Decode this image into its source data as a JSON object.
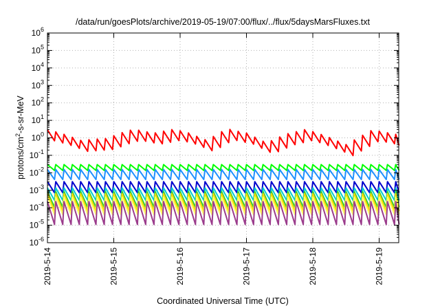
{
  "chart_data": {
    "type": "line",
    "title": "/data/run/goesPlots/archive/2019-05-19/07:00/flux/../flux/5daysMarsFluxes.txt",
    "xlabel": "Coordinated Universal Time (UTC)",
    "ylabel": "protons/cm²-s-sr-MeV",
    "ylabel_parts": {
      "pre": "protons/cm",
      "sup": "2",
      "post": "-s-sr-MeV"
    },
    "yscale": "log",
    "ylim_exp": [
      -6,
      6
    ],
    "y_ticks": [
      {
        "base": "10",
        "exp": "-6"
      },
      {
        "base": "10",
        "exp": "-5"
      },
      {
        "base": "10",
        "exp": "-4"
      },
      {
        "base": "10",
        "exp": "-3"
      },
      {
        "base": "10",
        "exp": "-2"
      },
      {
        "base": "10",
        "exp": "-1"
      },
      {
        "base": "10",
        "exp": "0"
      },
      {
        "base": "10",
        "exp": "1"
      },
      {
        "base": "10",
        "exp": "2"
      },
      {
        "base": "10",
        "exp": "3"
      },
      {
        "base": "10",
        "exp": "4"
      },
      {
        "base": "10",
        "exp": "5"
      },
      {
        "base": "10",
        "exp": "6"
      }
    ],
    "x_tick_labels": [
      "2019-5-14",
      "2019-5-15",
      "2019-5-16",
      "2019-5-17",
      "2019-5-18",
      "2019-5-19"
    ],
    "xlim_days": [
      0,
      5.3
    ],
    "grid": true,
    "series": [
      {
        "color": "#ff0000",
        "period_days": 0.125,
        "low": 0.35,
        "high": 1.5,
        "pts": [
          [
            0,
            1.4
          ],
          [
            0.2,
            0.9
          ],
          [
            0.5,
            0.35
          ],
          [
            0.9,
            0.45
          ],
          [
            1.1,
            0.9
          ],
          [
            1.3,
            1.5
          ],
          [
            1.6,
            0.9
          ],
          [
            1.9,
            1.5
          ],
          [
            2.1,
            1.0
          ],
          [
            2.4,
            0.35
          ],
          [
            2.7,
            1.6
          ],
          [
            3.0,
            0.9
          ],
          [
            3.3,
            0.25
          ],
          [
            3.6,
            0.8
          ],
          [
            3.9,
            1.5
          ],
          [
            4.2,
            0.6
          ],
          [
            4.5,
            0.2
          ],
          [
            4.9,
            1.4
          ],
          [
            5.3,
            0.7
          ]
        ]
      },
      {
        "color": "#00ff00",
        "period_days": 0.125,
        "low": 0.013,
        "high": 0.028,
        "pts": [
          [
            0,
            0.02
          ],
          [
            5.3,
            0.02
          ]
        ]
      },
      {
        "color": "#1e90ff",
        "period_days": 0.125,
        "low": 0.004,
        "high": 0.015,
        "pts": [
          [
            0,
            0.008
          ],
          [
            5.3,
            0.008
          ]
        ]
      },
      {
        "color": "#0000cd",
        "period_days": 0.125,
        "low": 0.0007,
        "high": 0.003,
        "pts": [
          [
            0,
            0.0015
          ],
          [
            5.3,
            0.0015
          ]
        ]
      },
      {
        "color": "#00ced1",
        "period_days": 0.125,
        "low": 0.00025,
        "high": 0.0013,
        "pts": [
          [
            0,
            0.0006
          ],
          [
            5.3,
            0.0006
          ]
        ]
      },
      {
        "color": "#32cd32",
        "period_days": 0.125,
        "low": 0.0001,
        "high": 0.0008,
        "pts": [
          [
            0,
            0.0003
          ],
          [
            5.3,
            0.0003
          ]
        ]
      },
      {
        "color": "#ffd700",
        "period_days": 0.125,
        "low": 6e-05,
        "high": 0.0006,
        "pts": [
          [
            0,
            0.0002
          ],
          [
            5.3,
            0.0002
          ]
        ]
      },
      {
        "color": "#ffff66",
        "period_days": 0.125,
        "low": 4e-05,
        "high": 0.0004,
        "pts": [
          [
            0,
            0.00013
          ],
          [
            5.3,
            0.00013
          ]
        ]
      },
      {
        "color": "#9b3c8c",
        "period_days": 0.125,
        "low": 1.2e-05,
        "high": 0.00025,
        "pts": [
          [
            0,
            5e-05
          ],
          [
            5.3,
            5e-05
          ]
        ]
      }
    ]
  }
}
